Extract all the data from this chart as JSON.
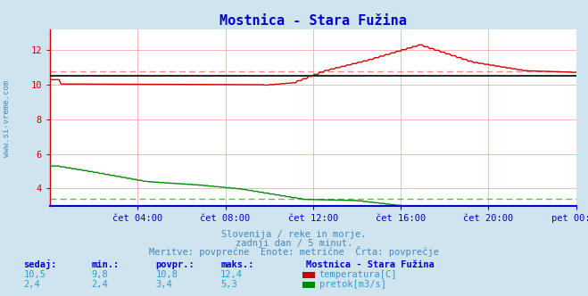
{
  "title": "Mostnica - Stara Fužina",
  "title_color": "#0000cc",
  "bg_color": "#d0e4f0",
  "plot_bg_color": "#ffffff",
  "grid_color": "#ffaaaa",
  "grid_minor_color": "#ffe0e0",
  "x_ticks_labels": [
    "čet 04:00",
    "čet 08:00",
    "čet 12:00",
    "čet 16:00",
    "čet 20:00",
    "pet 00:00"
  ],
  "x_ticks_pos": [
    0.1667,
    0.3333,
    0.5,
    0.6667,
    0.8333,
    1.0
  ],
  "y_ticks": [
    4,
    6,
    8,
    10,
    12
  ],
  "ylim": [
    3.0,
    13.2
  ],
  "xlim": [
    0,
    1
  ],
  "temp_avg": 10.8,
  "flow_avg": 3.4,
  "watermark": "www.si-vreme.com",
  "watermark_color": "#4488bb",
  "subtitle1": "Slovenija / reke in morje.",
  "subtitle2": "zadnji dan / 5 minut.",
  "subtitle3": "Meritve: povprečne  Enote: metrične  Črta: povprečje",
  "subtitle_color": "#4488bb",
  "table_header_color": "#0000cc",
  "table_value_color": "#3399cc",
  "table_cols": [
    "sedaj:",
    "min.:",
    "povpr.:",
    "maks.:"
  ],
  "table_station": "Mostnica - Stara Fužina",
  "table_row1": [
    "10,5",
    "9,8",
    "10,8",
    "12,4"
  ],
  "table_row2": [
    "2,4",
    "2,4",
    "3,4",
    "5,3"
  ],
  "label_temp": "temperatura[C]",
  "label_flow": "pretok[m3/s]",
  "temp_color": "#cc0000",
  "flow_color": "#008800",
  "avg_line_color_temp": "#ff8888",
  "avg_line_color_flow": "#44cc44",
  "black_avg_color": "#000000",
  "blue_axis_color": "#0000cc",
  "spine_color": "#cc0000",
  "tick_color": "#4488bb"
}
